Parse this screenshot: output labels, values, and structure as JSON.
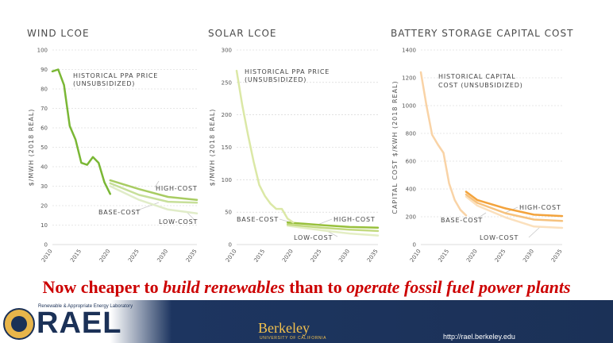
{
  "chart_data": [
    {
      "type": "line",
      "title": "WIND LCOE",
      "ylabel": "$/MWH (2018 REAL)",
      "ylim": [
        0,
        100
      ],
      "yticks": [
        0,
        10,
        20,
        30,
        40,
        50,
        60,
        70,
        80,
        90,
        100
      ],
      "xlim": [
        2010,
        2035
      ],
      "xticks": [
        2010,
        2015,
        2020,
        2025,
        2030,
        2035
      ],
      "series": [
        {
          "name": "historical",
          "color": "#7ab735",
          "width": 2.5,
          "x": [
            2010,
            2011,
            2012,
            2013,
            2014,
            2015,
            2016,
            2017,
            2018,
            2019,
            2020
          ],
          "y": [
            89,
            90,
            82,
            61,
            54,
            42,
            41,
            45,
            42,
            32,
            26
          ]
        },
        {
          "name": "high-cost",
          "color": "#a8cc62",
          "width": 2.5,
          "x": [
            2020,
            2025,
            2030,
            2035
          ],
          "y": [
            33,
            28.5,
            24.5,
            23
          ]
        },
        {
          "name": "base-cost",
          "color": "#c7df9a",
          "width": 2.5,
          "x": [
            2020,
            2025,
            2030,
            2035
          ],
          "y": [
            31.5,
            25.5,
            22,
            21.5
          ]
        },
        {
          "name": "low-cost",
          "color": "#e0ecc8",
          "width": 2.5,
          "x": [
            2020,
            2025,
            2030,
            2035
          ],
          "y": [
            30,
            23,
            18,
            16
          ]
        }
      ],
      "annotations": {
        "historical": "HISTORICAL PPA PRICE",
        "historical2": "(UNSUBSIDIZED)",
        "high": "HIGH-COST",
        "base": "BASE-COST",
        "low": "LOW-COST"
      }
    },
    {
      "type": "line",
      "title": "SOLAR LCOE",
      "ylabel": "$/MWH (2018 REAL)",
      "ylim": [
        0,
        300
      ],
      "yticks": [
        0,
        50,
        100,
        150,
        200,
        250,
        300
      ],
      "xlim": [
        2010,
        2035
      ],
      "xticks": [
        2010,
        2015,
        2020,
        2025,
        2030,
        2035
      ],
      "series": [
        {
          "name": "historical",
          "color": "#dbe8a6",
          "width": 2.5,
          "x": [
            2010,
            2011,
            2012,
            2013,
            2014,
            2015,
            2016,
            2017,
            2018,
            2019,
            2020
          ],
          "y": [
            268,
            215,
            170,
            128,
            92,
            75,
            63,
            55,
            55,
            40,
            34
          ]
        },
        {
          "name": "high-cost",
          "color": "#98c03c",
          "width": 2.5,
          "x": [
            2019,
            2025,
            2030,
            2035
          ],
          "y": [
            34,
            30,
            27,
            26
          ]
        },
        {
          "name": "base-cost",
          "color": "#c3da80",
          "width": 2.5,
          "x": [
            2019,
            2025,
            2030,
            2035
          ],
          "y": [
            31,
            26,
            23,
            21
          ]
        },
        {
          "name": "low-cost",
          "color": "#e4eec4",
          "width": 2.5,
          "x": [
            2019,
            2025,
            2030,
            2035
          ],
          "y": [
            29,
            22,
            17,
            14
          ]
        }
      ],
      "annotations": {
        "historical": "HISTORICAL PPA PRICE",
        "historical2": "(UNSUBSIDIZED)",
        "high": "HIGH-COST",
        "base": "BASE-COST",
        "low": "LOW-COST"
      }
    },
    {
      "type": "line",
      "title": "BATTERY STORAGE CAPITAL COST",
      "ylabel": "CAPITAL COST $/KWH (2018 REAL)",
      "ylim": [
        0,
        1400
      ],
      "yticks": [
        0,
        200,
        400,
        600,
        800,
        1000,
        1200,
        1400
      ],
      "xlim": [
        2010,
        2035
      ],
      "xticks": [
        2010,
        2015,
        2020,
        2025,
        2030,
        2035
      ],
      "series": [
        {
          "name": "historical",
          "color": "#f9d3a6",
          "width": 2.5,
          "x": [
            2010,
            2011,
            2012,
            2013,
            2014,
            2015,
            2016,
            2017,
            2018
          ],
          "y": [
            1240,
            1000,
            790,
            720,
            660,
            440,
            320,
            250,
            210
          ]
        },
        {
          "name": "high-cost",
          "color": "#f3a33c",
          "width": 2.5,
          "x": [
            2018,
            2020,
            2025,
            2030,
            2035
          ],
          "y": [
            380,
            320,
            260,
            215,
            205
          ]
        },
        {
          "name": "base-cost",
          "color": "#f6c27e",
          "width": 2.5,
          "x": [
            2018,
            2020,
            2025,
            2030,
            2035
          ],
          "y": [
            360,
            300,
            225,
            180,
            170
          ]
        },
        {
          "name": "low-cost",
          "color": "#fbe0bd",
          "width": 2.5,
          "x": [
            2018,
            2020,
            2025,
            2030,
            2035
          ],
          "y": [
            345,
            280,
            195,
            130,
            120
          ]
        }
      ],
      "annotations": {
        "historical": "HISTORICAL CAPITAL",
        "historical2": "COST (UNSUBSIDIZED)",
        "high": "HIGH-COST",
        "base": "BASE-COST",
        "low": "LOW-COST"
      }
    }
  ],
  "headline": {
    "part1": "Now cheaper to ",
    "part2": "build renewables",
    "part3": " than to ",
    "part4": "operate fossil fuel power plants"
  },
  "footer": {
    "rael_subtitle": "Renewable & Appropriate Energy Laboratory",
    "rael": "RAEL",
    "berkeley": "Berkeley",
    "berkeley_sub": "UNIVERSITY OF CALIFORNIA",
    "url": "http://rael.berkeley.edu"
  }
}
